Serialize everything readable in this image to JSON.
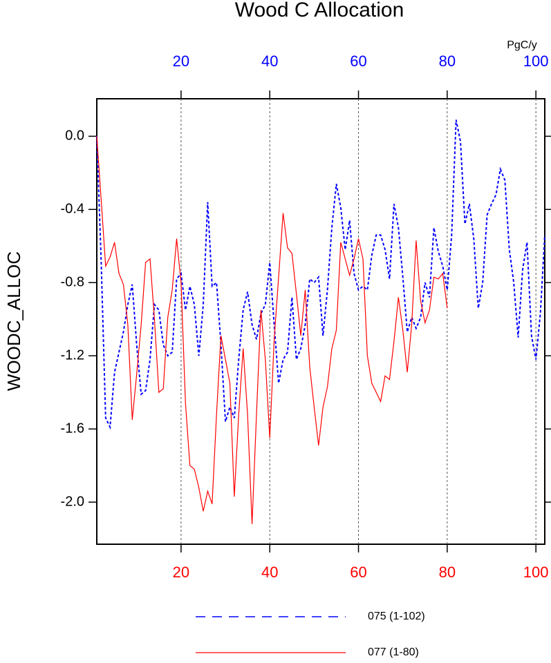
{
  "chart_data": {
    "type": "line",
    "title": "Wood C Allocation",
    "y_label": "WOODC_ALLOC",
    "units": "PgC/y",
    "xlim": [
      1,
      102
    ],
    "xticks": [
      20,
      40,
      60,
      80,
      100
    ],
    "x_color": "#ff0000",
    "x2lim": [
      1,
      102
    ],
    "x2ticks": [
      20,
      40,
      60,
      80,
      100
    ],
    "x2_color": "#0000ff",
    "ylim": [
      -2.23,
      0.205
    ],
    "yticks": [
      {
        "value": 0,
        "label": "0.0"
      },
      -0.4,
      -0.8,
      -1.2,
      -1.6,
      {
        "value": -2,
        "label": "-2.0"
      }
    ],
    "grid": "x2",
    "series": [
      {
        "name": "075 (1-102)",
        "color": "#0000ff",
        "dash": true,
        "axis": "x2",
        "x": [
          1,
          2,
          3,
          4,
          5,
          6,
          7,
          8,
          9,
          10,
          11,
          12,
          13,
          14,
          15,
          16,
          17,
          18,
          19,
          20,
          21,
          22,
          23,
          24,
          25,
          26,
          27,
          28,
          29,
          30,
          31,
          32,
          33,
          34,
          35,
          36,
          37,
          38,
          39,
          40,
          41,
          42,
          43,
          44,
          45,
          46,
          47,
          48,
          49,
          50,
          51,
          52,
          53,
          54,
          55,
          56,
          57,
          58,
          59,
          60,
          61,
          62,
          63,
          64,
          65,
          66,
          67,
          68,
          69,
          70,
          71,
          72,
          73,
          74,
          75,
          76,
          77,
          78,
          79,
          80,
          81,
          82,
          83,
          84,
          85,
          86,
          87,
          88,
          89,
          90,
          91,
          92,
          93,
          94,
          95,
          96,
          97,
          98,
          99,
          100,
          101,
          102
        ],
        "values": [
          0.0,
          -0.69,
          -1.54,
          -1.59,
          -1.29,
          -1.18,
          -1.07,
          -0.92,
          -0.81,
          -1.14,
          -1.41,
          -1.39,
          -1.22,
          -0.92,
          -0.95,
          -1.14,
          -1.2,
          -1.18,
          -0.78,
          -0.75,
          -0.95,
          -0.82,
          -0.92,
          -1.2,
          -0.92,
          -0.36,
          -0.82,
          -0.8,
          -1.14,
          -1.56,
          -1.48,
          -1.54,
          -1.22,
          -0.95,
          -0.85,
          -1.03,
          -1.11,
          -0.97,
          -0.92,
          -0.69,
          -1.03,
          -1.35,
          -1.22,
          -1.18,
          -0.88,
          -1.22,
          -1.16,
          -1.03,
          -0.78,
          -0.8,
          -0.77,
          -1.09,
          -0.84,
          -0.5,
          -0.26,
          -0.39,
          -0.62,
          -0.46,
          -0.75,
          -0.84,
          -0.82,
          -0.84,
          -0.65,
          -0.54,
          -0.54,
          -0.62,
          -0.78,
          -0.37,
          -0.5,
          -0.77,
          -1.07,
          -0.99,
          -1.05,
          -0.99,
          -0.8,
          -0.88,
          -0.5,
          -0.63,
          -0.71,
          -0.84,
          -0.54,
          0.09,
          -0.03,
          -0.48,
          -0.37,
          -0.56,
          -0.94,
          -0.8,
          -0.43,
          -0.37,
          -0.32,
          -0.18,
          -0.24,
          -0.62,
          -0.8,
          -1.1,
          -0.73,
          -0.58,
          -1.09,
          -1.22,
          -0.97,
          -0.54
        ]
      },
      {
        "name": "077 (1-80)",
        "color": "#ff0000",
        "dash": false,
        "axis": "x",
        "x": [
          1,
          2,
          3,
          4,
          5,
          6,
          7,
          8,
          9,
          10,
          11,
          12,
          13,
          14,
          15,
          16,
          17,
          18,
          19,
          20,
          21,
          22,
          23,
          24,
          25,
          26,
          27,
          28,
          29,
          30,
          31,
          32,
          33,
          34,
          35,
          36,
          37,
          38,
          39,
          40,
          41,
          42,
          43,
          44,
          45,
          46,
          47,
          48,
          49,
          50,
          51,
          52,
          53,
          54,
          55,
          56,
          57,
          58,
          59,
          60,
          61,
          62,
          63,
          64,
          65,
          66,
          67,
          68,
          69,
          70,
          71,
          72,
          73,
          74,
          75,
          76,
          77,
          78,
          79,
          80
        ],
        "values": [
          0.0,
          -0.35,
          -0.71,
          -0.66,
          -0.58,
          -0.75,
          -0.81,
          -1.03,
          -1.55,
          -1.3,
          -1.03,
          -0.69,
          -0.67,
          -1.0,
          -1.4,
          -1.38,
          -0.99,
          -0.84,
          -0.56,
          -0.8,
          -1.46,
          -1.8,
          -1.82,
          -1.92,
          -2.05,
          -1.94,
          -2.01,
          -1.52,
          -1.09,
          -1.22,
          -1.35,
          -1.97,
          -1.52,
          -1.16,
          -1.52,
          -2.12,
          -1.52,
          -0.95,
          -1.22,
          -1.65,
          -1.11,
          -0.77,
          -0.42,
          -0.61,
          -0.64,
          -0.86,
          -1.09,
          -0.84,
          -1.26,
          -1.48,
          -1.69,
          -1.48,
          -1.37,
          -1.16,
          -1.06,
          -0.58,
          -0.67,
          -0.76,
          -0.67,
          -0.56,
          -0.67,
          -1.2,
          -1.35,
          -1.4,
          -1.45,
          -1.31,
          -1.33,
          -1.12,
          -0.88,
          -1.06,
          -1.29,
          -1.03,
          -0.57,
          -0.9,
          -1.02,
          -0.95,
          -0.77,
          -0.78,
          -0.75,
          -0.94
        ]
      }
    ]
  }
}
